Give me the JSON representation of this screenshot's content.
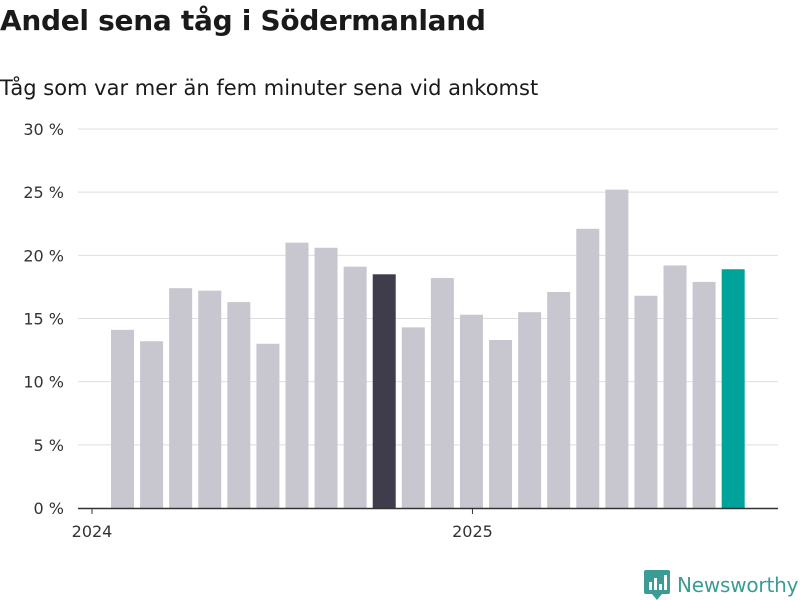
{
  "header": {
    "title": "Andel sena tåg i Södermanland",
    "subtitle": "Tåg som var mer än fem minuter sena vid ankomst"
  },
  "brand": {
    "name": "Newsworthy",
    "color": "#3a9c94"
  },
  "colors": {
    "default": "#c8c7d0",
    "highlight_dark": "#3f3d4b",
    "highlight_accent": "#00a39a",
    "grid": "#dedede",
    "axis": "#333333"
  },
  "chart_data": {
    "type": "bar",
    "title": "Andel sena tåg i Södermanland",
    "subtitle": "Tåg som var mer än fem minuter sena vid ankomst",
    "xlabel": "",
    "ylabel": "",
    "ylim": [
      0,
      30
    ],
    "yticks": [
      0,
      5,
      10,
      15,
      20,
      25,
      30
    ],
    "ytick_labels": [
      "0 %",
      "5 %",
      "10 %",
      "15 %",
      "20 %",
      "25 %",
      "30 %"
    ],
    "grid": true,
    "categories": [
      "2024-01",
      "2024-02",
      "2024-03",
      "2024-04",
      "2024-05",
      "2024-06",
      "2024-07",
      "2024-08",
      "2024-09",
      "2024-10",
      "2024-11",
      "2024-12",
      "2025-01",
      "2025-02",
      "2025-03",
      "2025-04",
      "2025-05",
      "2025-06",
      "2025-07",
      "2025-08",
      "2025-09",
      "2025-10"
    ],
    "values": [
      14.1,
      13.2,
      17.4,
      17.2,
      16.3,
      13.0,
      21.0,
      20.6,
      19.1,
      18.5,
      14.3,
      18.2,
      15.3,
      13.3,
      15.5,
      17.1,
      22.1,
      25.2,
      16.8,
      19.2,
      17.9,
      18.9
    ],
    "highlights": {
      "9": "highlight_dark",
      "21": "highlight_accent"
    },
    "x_ticks": [
      {
        "label": "2024",
        "index": 0
      },
      {
        "label": "2025",
        "index": 12
      }
    ]
  }
}
